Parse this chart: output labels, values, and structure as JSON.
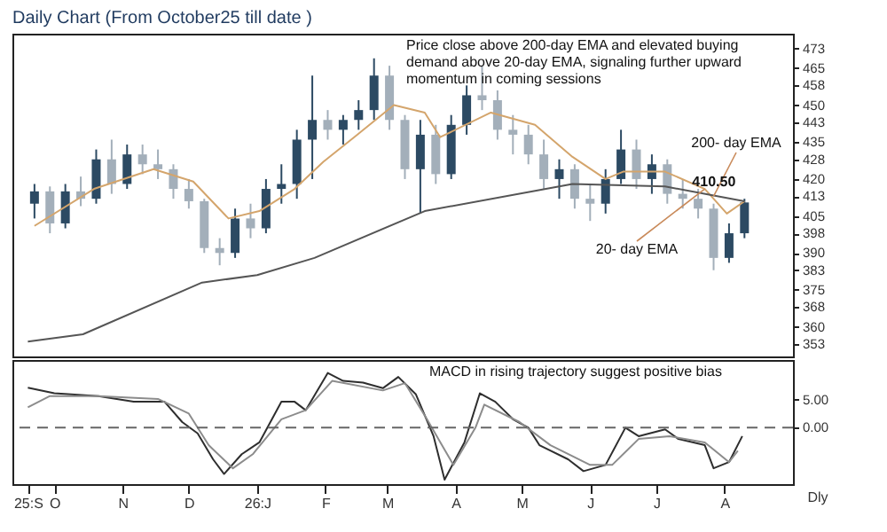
{
  "chart_data": [
    {
      "type": "candlestick",
      "title": "Daily Chart (From October25 till date )",
      "colors": [
        "#2c4a63",
        "#a3afba",
        "#2c4a63",
        "#a3afba",
        "#2c4a63",
        "#a3afba",
        "#2c4a63",
        "#a3afba",
        "#a3afba",
        "#a3afba",
        "#a3afba",
        "#a3afba",
        "#a3afba",
        "#2c4a63",
        "#a3afba",
        "#2c4a63",
        "#2c4a63",
        "#2c4a63",
        "#2c4a63",
        "#a3afba",
        "#2c4a63",
        "#2c4a63",
        "#2c4a63",
        "#a3afba",
        "#a3afba",
        "#2c4a63",
        "#a3afba",
        "#2c4a63",
        "#2c4a63",
        "#a3afba",
        "#a3afba",
        "#a3afba",
        "#a3afba",
        "#a3afba",
        "#2c4a63",
        "#a3afba",
        "#a3afba",
        "#2c4a63",
        "#2c4a63",
        "#a3afba",
        "#2c4a63",
        "#a3afba",
        "#a3afba",
        "#a3afba",
        "#a3afba",
        "#2c4a63",
        "#2c4a63"
      ],
      "x": [
        "2025-09-22",
        "2025-09-29",
        "2025-10-06",
        "2025-10-13",
        "2025-10-20",
        "2025-10-27",
        "2025-11-03",
        "2025-11-10",
        "2025-11-17",
        "2025-11-24",
        "2025-12-01",
        "2025-12-08",
        "2025-12-15",
        "2025-12-22",
        "2025-12-29",
        "2026-01-05",
        "2026-01-12",
        "2026-01-19",
        "2026-01-26",
        "2026-02-02",
        "2026-02-09",
        "2026-02-16",
        "2026-02-23",
        "2026-03-02",
        "2026-03-09",
        "2026-03-16",
        "2026-03-23",
        "2026-03-30",
        "2026-04-06",
        "2026-04-13",
        "2026-04-20",
        "2026-04-27",
        "2026-05-04",
        "2026-05-11",
        "2026-05-18",
        "2026-05-25",
        "2026-06-01",
        "2026-06-08",
        "2026-06-15",
        "2026-06-22",
        "2026-06-29",
        "2026-07-06",
        "2026-07-13",
        "2026-07-20",
        "2026-07-27",
        "2026-08-03",
        "2026-08-10"
      ],
      "ohlc": [
        [
          410,
          418,
          404,
          415
        ],
        [
          415,
          417,
          398,
          402
        ],
        [
          402,
          418,
          400,
          415
        ],
        [
          415,
          421,
          409,
          412
        ],
        [
          412,
          432,
          410,
          428
        ],
        [
          428,
          436,
          414,
          418
        ],
        [
          418,
          434,
          416,
          430
        ],
        [
          430,
          434,
          422,
          426
        ],
        [
          426,
          432,
          420,
          424
        ],
        [
          424,
          426,
          412,
          416
        ],
        [
          416,
          420,
          408,
          411
        ],
        [
          411,
          412,
          390,
          392
        ],
        [
          392,
          396,
          385,
          390
        ],
        [
          390,
          408,
          388,
          404
        ],
        [
          404,
          410,
          396,
          400
        ],
        [
          400,
          420,
          398,
          416
        ],
        [
          416,
          426,
          410,
          418
        ],
        [
          418,
          440,
          412,
          436
        ],
        [
          436,
          462,
          420,
          444
        ],
        [
          444,
          448,
          436,
          440
        ],
        [
          440,
          446,
          434,
          444
        ],
        [
          444,
          452,
          440,
          448
        ],
        [
          448,
          469,
          444,
          462
        ],
        [
          462,
          466,
          440,
          444
        ],
        [
          444,
          446,
          420,
          424
        ],
        [
          424,
          444,
          406,
          438
        ],
        [
          438,
          442,
          418,
          422
        ],
        [
          422,
          446,
          420,
          442
        ],
        [
          442,
          458,
          438,
          454
        ],
        [
          454,
          466,
          448,
          452
        ],
        [
          452,
          456,
          436,
          440
        ],
        [
          440,
          446,
          430,
          438
        ],
        [
          438,
          442,
          426,
          430
        ],
        [
          430,
          436,
          416,
          420
        ],
        [
          420,
          428,
          412,
          424
        ],
        [
          424,
          426,
          408,
          412
        ],
        [
          412,
          418,
          403,
          410
        ],
        [
          410,
          424,
          406,
          420
        ],
        [
          420,
          440,
          418,
          432
        ],
        [
          432,
          436,
          416,
          420
        ],
        [
          420,
          430,
          414,
          426
        ],
        [
          426,
          428,
          410,
          414
        ],
        [
          414,
          420,
          408,
          412
        ],
        [
          412,
          416,
          404,
          408
        ],
        [
          408,
          410,
          383,
          388
        ],
        [
          388,
          402,
          386,
          398
        ],
        [
          398,
          412,
          396,
          410.5
        ]
      ],
      "series": [
        {
          "type": "line",
          "color": "#d4a56c",
          "x": [
            "2025-09-22",
            "2025-10-19",
            "2025-11-15",
            "2025-12-03",
            "2025-12-19",
            "2026-01-02",
            "2026-01-18",
            "2026-01-31",
            "2026-02-14",
            "2026-03-04",
            "2026-03-18",
            "2026-03-25",
            "2026-04-17",
            "2026-05-07",
            "2026-05-24",
            "2026-06-08",
            "2026-06-16",
            "2026-07-05",
            "2026-07-23",
            "2026-07-27",
            "2026-08-02",
            "2026-08-10"
          ],
          "values": [
            401,
            416,
            424,
            419,
            404,
            407,
            416,
            427,
            437,
            450,
            447,
            437,
            447,
            442,
            429,
            420,
            423,
            423,
            416,
            412,
            406,
            411
          ]
        },
        {
          "type": "line",
          "color": "#555555",
          "x": [
            "2025-09-19",
            "2025-10-14",
            "2025-12-07",
            "2026-01-01",
            "2026-01-27",
            "2026-03-18",
            "2026-05-24",
            "2026-07-05",
            "2026-08-10"
          ],
          "values": [
            354,
            357,
            378,
            381,
            388,
            407,
            418,
            417,
            411
          ]
        }
      ],
      "xlim": [
        "2025-09-12",
        "2026-09-01"
      ],
      "ylim": [
        348,
        479
      ],
      "yticks": [
        353,
        360,
        368,
        375,
        383,
        390,
        398,
        405,
        413,
        420,
        428,
        435,
        443,
        450,
        458,
        465,
        473
      ],
      "xticks": [
        "2025-09-19",
        "2025-10-01",
        "2025-11-01",
        "2025-12-01",
        "2026-01-01",
        "2026-02-01",
        "2026-03-01",
        "2026-04-01",
        "2026-05-01",
        "2026-06-01",
        "2026-07-01",
        "2026-08-01"
      ],
      "tick_labels": "y",
      "grid": false,
      "marker": "none",
      "annotations": [
        "Price close above 200-day EMA and elevated buying demand above 20-day EMA, signaling further upward momentum in coming sessions",
        {
          "text": "200- day EMA",
          "x": "2026-07-27",
          "y": 413
        },
        {
          "text": "20- day EMA",
          "x": "2026-07-23",
          "y": 416
        },
        {
          "text": "410.50",
          "x": "2026-08-10",
          "y": 410.5
        }
      ]
    },
    {
      "type": "line",
      "grid": false,
      "marker": "none",
      "series": [
        {
          "color": "#2e2e2e",
          "x": [
            "2025-09-19",
            "2025-10-01",
            "2025-10-21",
            "2025-11-06",
            "2025-11-20",
            "2025-11-28",
            "2025-12-05",
            "2025-12-12",
            "2025-12-17",
            "2025-12-25",
            "2026-01-02",
            "2026-01-12",
            "2026-01-18",
            "2026-01-23",
            "2026-02-02",
            "2026-02-09",
            "2026-02-18",
            "2026-02-27",
            "2026-03-06",
            "2026-03-14",
            "2026-03-22",
            "2026-03-27",
            "2026-04-05",
            "2026-04-12",
            "2026-04-19",
            "2026-04-27",
            "2026-05-04",
            "2026-05-09",
            "2026-05-22",
            "2026-05-29",
            "2026-06-08",
            "2026-06-17",
            "2026-06-23",
            "2026-07-05",
            "2026-07-11",
            "2026-07-23",
            "2026-07-27",
            "2026-08-03",
            "2026-08-09"
          ],
          "values": [
            7.1,
            6.1,
            5.6,
            4.6,
            4.6,
            1.0,
            -1.0,
            -5.6,
            -8.2,
            -4.7,
            -2.6,
            4.6,
            4.6,
            3.1,
            9.7,
            8.3,
            8.0,
            7.0,
            9.0,
            5.9,
            -1.5,
            -9.2,
            -2.6,
            6.1,
            4.6,
            1.5,
            0,
            -3.1,
            -5.6,
            -7.7,
            -6.6,
            0,
            -1.5,
            -0.3,
            -2.0,
            -3.1,
            -7.2,
            -6.1,
            -1.5
          ]
        },
        {
          "color": "#8c8c8c",
          "x": [
            "2025-09-19",
            "2025-09-29",
            "2025-10-21",
            "2025-11-17",
            "2025-12-01",
            "2025-12-10",
            "2025-12-21",
            "2025-12-30",
            "2026-01-12",
            "2026-01-23",
            "2026-02-04",
            "2026-02-27",
            "2026-03-09",
            "2026-03-19",
            "2026-03-31",
            "2026-04-10",
            "2026-04-14",
            "2026-04-30",
            "2026-05-14",
            "2026-06-01",
            "2026-06-11",
            "2026-06-23",
            "2026-07-07",
            "2026-07-23",
            "2026-08-03",
            "2026-08-07"
          ],
          "values": [
            3.6,
            5.6,
            5.6,
            5.1,
            2.5,
            -3.1,
            -7.2,
            -4.7,
            1.5,
            3.1,
            8.3,
            6.6,
            7.9,
            1.5,
            -6.6,
            0,
            4.1,
            1.0,
            -3.1,
            -6.6,
            -6.6,
            -2.0,
            -1.5,
            -2.6,
            -6.1,
            -4.1
          ]
        }
      ],
      "xlim": [
        "2025-09-12",
        "2026-09-01"
      ],
      "ylim": [
        -10,
        12
      ],
      "xticks": [
        {
          "value": "2025-09-19",
          "label": "25:S"
        },
        {
          "value": "2025-10-01",
          "label": "O"
        },
        {
          "value": "2025-11-01",
          "label": "N"
        },
        {
          "value": "2025-12-01",
          "label": "D"
        },
        {
          "value": "2026-01-01",
          "label": "26:J"
        },
        {
          "value": "2026-02-01",
          "label": "F"
        },
        {
          "value": "2026-03-01",
          "label": "M"
        },
        {
          "value": "2026-04-01",
          "label": "A"
        },
        {
          "value": "2026-05-01",
          "label": "M"
        },
        {
          "value": "2026-06-01",
          "label": "J"
        },
        {
          "value": "2026-07-01",
          "label": "J"
        },
        {
          "value": "2026-08-01",
          "label": "A"
        }
      ],
      "yticks": [
        {
          "value": 5,
          "label": "5.00"
        },
        {
          "value": 0,
          "label": "0.00"
        }
      ],
      "ref_lines": [
        {
          "axis": "y",
          "value": 0,
          "line_style": "dashed",
          "color": "#666666"
        }
      ],
      "annotations": [
        "MACD in rising trajectory suggest positive bias",
        "Dly"
      ]
    }
  ]
}
